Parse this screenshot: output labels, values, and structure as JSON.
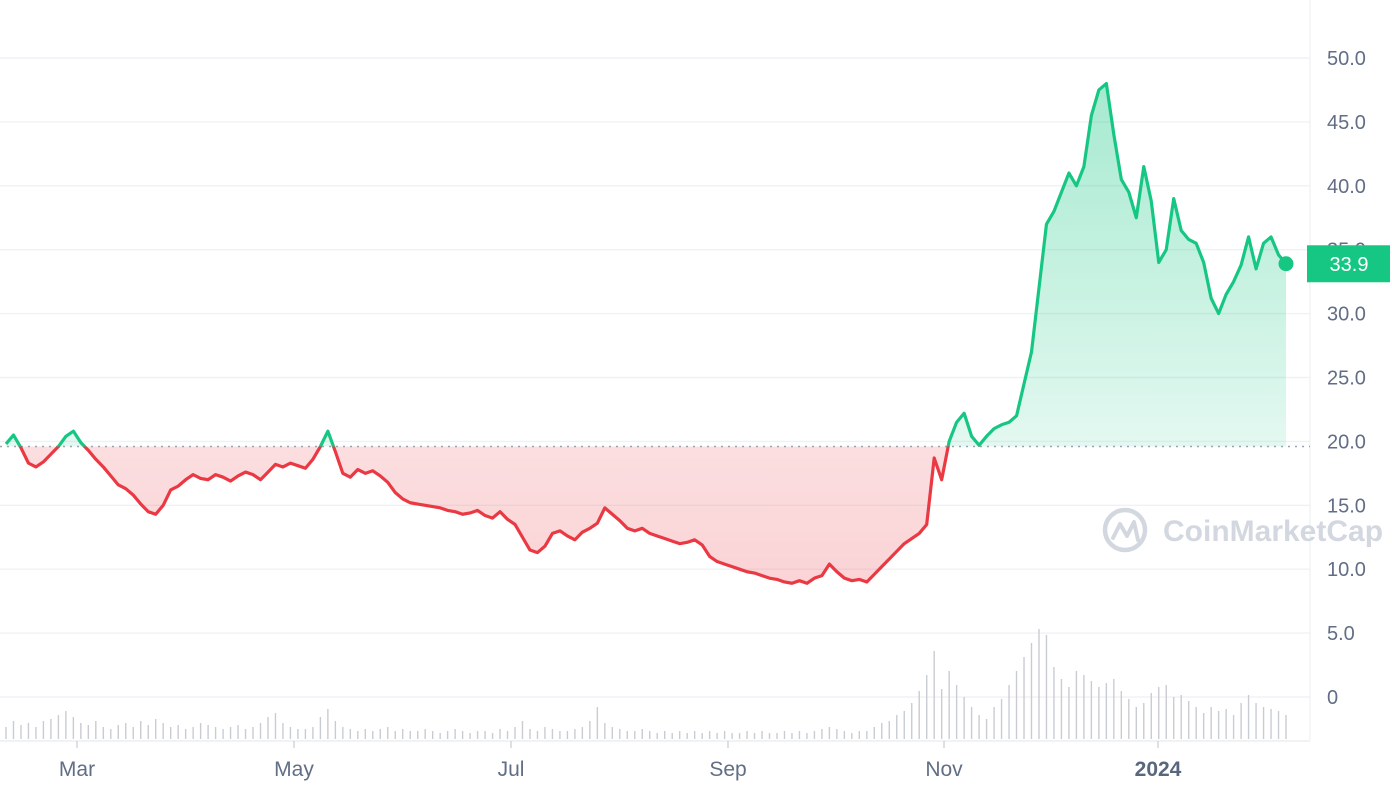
{
  "watermark": {
    "text": "CoinMarketCap"
  },
  "colors": {
    "up": "#16c784",
    "down": "#ea3943",
    "grid": "#eff2f5",
    "axis_text": "#616e85",
    "volume": "#c8ccd3",
    "baseline": "#9aa3b2"
  },
  "chart_data": {
    "type": "line",
    "ylim": [
      -3,
      55
    ],
    "y_ticks": [
      "0",
      "5.0",
      "10.0",
      "15.0",
      "20.0",
      "25.0",
      "30.0",
      "35.0",
      "40.0",
      "45.0",
      "50.0"
    ],
    "x_ticks": [
      "Mar",
      "May",
      "Jul",
      "Sep",
      "Nov",
      "2024"
    ],
    "baseline_value": 19.6,
    "current_price": {
      "value": 33.9,
      "label": "33.9"
    },
    "grid": true,
    "series": [
      {
        "values": [
          19.8,
          20.5,
          19.5,
          18.3,
          18.0,
          18.4,
          19.0,
          19.6,
          20.4,
          20.8,
          19.9,
          19.3,
          18.6,
          18.0,
          17.3,
          16.6,
          16.3,
          15.8,
          15.1,
          14.5,
          14.3,
          15.0,
          16.2,
          16.5,
          17.0,
          17.4,
          17.1,
          17.0,
          17.4,
          17.2,
          16.9,
          17.3,
          17.6,
          17.4,
          17.0,
          17.6,
          18.2,
          18.0,
          18.3,
          18.1,
          17.9,
          18.6,
          19.6,
          20.8,
          19.2,
          17.5,
          17.2,
          17.8,
          17.5,
          17.7,
          17.3,
          16.8,
          16.0,
          15.5,
          15.2,
          15.1,
          15.0,
          14.9,
          14.8,
          14.6,
          14.5,
          14.3,
          14.4,
          14.6,
          14.2,
          14.0,
          14.5,
          13.9,
          13.5,
          12.5,
          11.5,
          11.3,
          11.8,
          12.8,
          13.0,
          12.6,
          12.3,
          12.9,
          13.2,
          13.6,
          14.8,
          14.3,
          13.8,
          13.2,
          13.0,
          13.2,
          12.8,
          12.6,
          12.4,
          12.2,
          12.0,
          12.1,
          12.3,
          11.9,
          11.0,
          10.6,
          10.4,
          10.2,
          10.0,
          9.8,
          9.7,
          9.5,
          9.3,
          9.2,
          9.0,
          8.9,
          9.1,
          8.9,
          9.3,
          9.5,
          10.4,
          9.8,
          9.3,
          9.1,
          9.2,
          9.0,
          9.6,
          10.2,
          10.8,
          11.4,
          12.0,
          12.4,
          12.8,
          13.5,
          18.7,
          17.0,
          20.0,
          21.5,
          22.2,
          20.4,
          19.7,
          20.4,
          21.0,
          21.3,
          21.5,
          22.0,
          24.5,
          27.0,
          32.0,
          37.0,
          38.0,
          39.5,
          41.0,
          40.0,
          41.5,
          45.5,
          47.5,
          48.0,
          44.0,
          40.5,
          39.5,
          37.5,
          41.5,
          38.8,
          34.0,
          35.0,
          39.0,
          36.5,
          35.8,
          35.5,
          34.0,
          31.2,
          30.0,
          31.5,
          32.5,
          33.8,
          36.0,
          33.5,
          35.5,
          36.0,
          34.6,
          33.9
        ]
      }
    ],
    "volume": [
      0.6,
      0.9,
      0.7,
      0.8,
      0.6,
      0.9,
      1.0,
      1.2,
      1.4,
      1.1,
      0.8,
      0.7,
      0.9,
      0.6,
      0.5,
      0.7,
      0.8,
      0.6,
      0.9,
      0.7,
      1.0,
      0.8,
      0.6,
      0.7,
      0.5,
      0.6,
      0.8,
      0.7,
      0.6,
      0.5,
      0.6,
      0.7,
      0.5,
      0.6,
      0.8,
      1.1,
      1.3,
      0.8,
      0.6,
      0.5,
      0.5,
      0.6,
      1.1,
      1.5,
      0.9,
      0.6,
      0.5,
      0.4,
      0.5,
      0.4,
      0.5,
      0.6,
      0.4,
      0.5,
      0.4,
      0.4,
      0.5,
      0.4,
      0.3,
      0.4,
      0.5,
      0.4,
      0.3,
      0.4,
      0.4,
      0.3,
      0.5,
      0.4,
      0.6,
      0.9,
      0.5,
      0.4,
      0.6,
      0.5,
      0.4,
      0.4,
      0.5,
      0.6,
      0.9,
      1.6,
      0.8,
      0.6,
      0.5,
      0.4,
      0.4,
      0.5,
      0.4,
      0.3,
      0.4,
      0.3,
      0.4,
      0.3,
      0.4,
      0.3,
      0.4,
      0.3,
      0.4,
      0.3,
      0.3,
      0.4,
      0.3,
      0.4,
      0.3,
      0.3,
      0.4,
      0.3,
      0.4,
      0.3,
      0.4,
      0.5,
      0.6,
      0.5,
      0.4,
      0.3,
      0.4,
      0.4,
      0.6,
      0.8,
      0.9,
      1.2,
      1.4,
      1.8,
      2.4,
      3.2,
      4.4,
      2.5,
      3.4,
      2.7,
      2.1,
      1.6,
      1.2,
      1.0,
      1.6,
      2.0,
      2.7,
      3.4,
      4.1,
      4.8,
      5.5,
      5.2,
      3.6,
      3.0,
      2.6,
      3.4,
      3.2,
      2.9,
      2.6,
      2.8,
      3.0,
      2.4,
      2.0,
      1.6,
      1.8,
      2.3,
      2.6,
      2.7,
      2.1,
      2.2,
      1.9,
      1.6,
      1.3,
      1.6,
      1.4,
      1.5,
      1.2,
      1.8,
      2.2,
      1.8,
      1.6,
      1.5,
      1.4,
      1.2
    ]
  }
}
